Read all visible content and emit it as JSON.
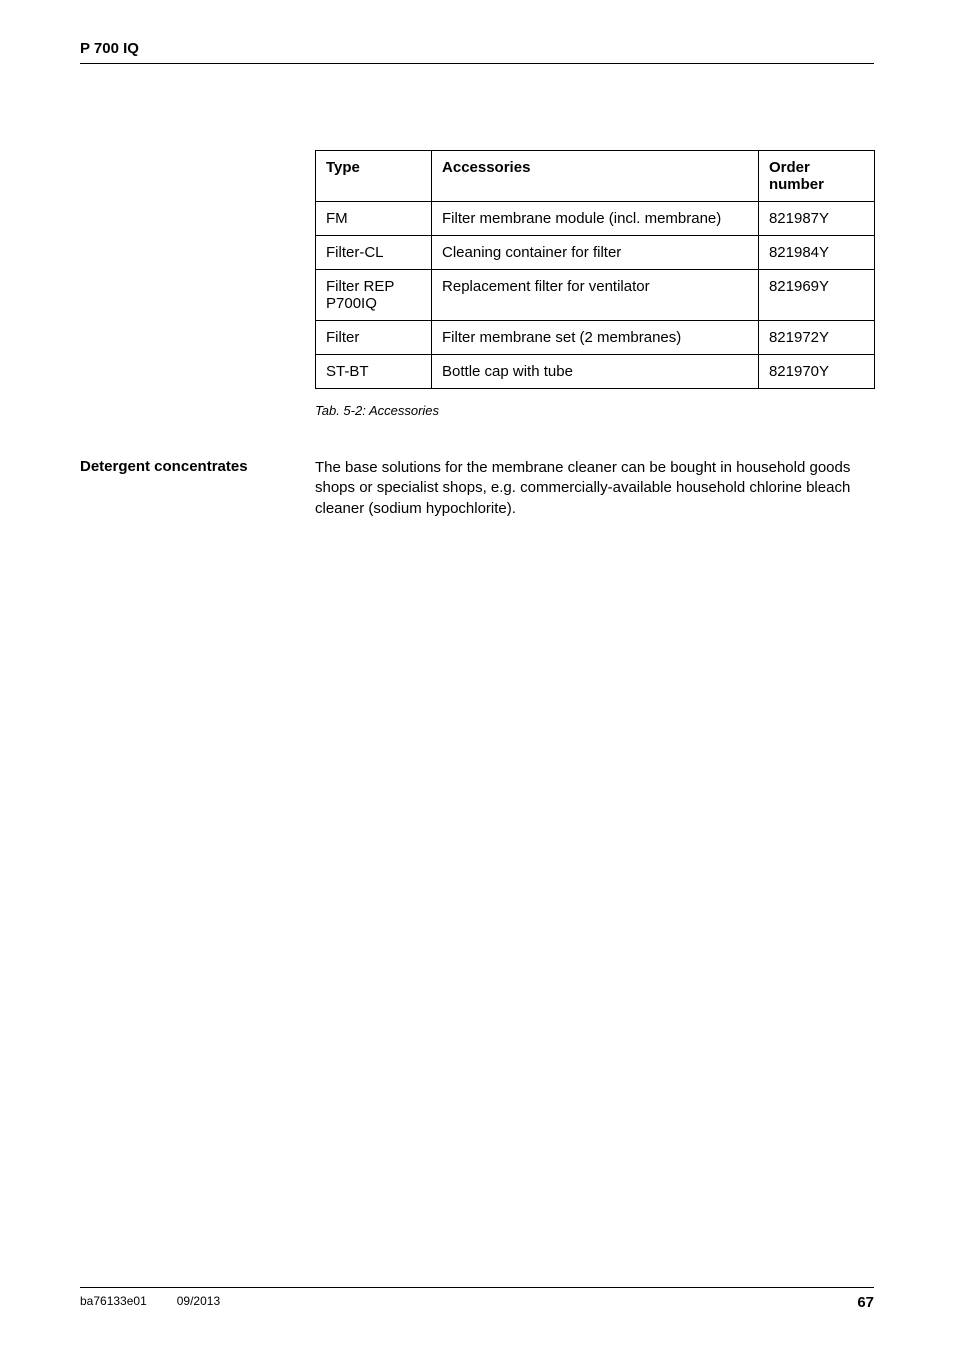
{
  "header": {
    "title": "P 700 IQ"
  },
  "table": {
    "columns": [
      "Type",
      "Accessories",
      "Order number"
    ],
    "rows": [
      {
        "type": "FM",
        "accessories": "Filter membrane module (incl. membrane)",
        "order": "821987Y"
      },
      {
        "type": "Filter-CL",
        "accessories": "Cleaning container for filter",
        "order": "821984Y"
      },
      {
        "type": "Filter REP P700IQ",
        "accessories": "Replacement filter for ventilator",
        "order": "821969Y"
      },
      {
        "type": "Filter",
        "accessories": "Filter membrane set (2 membranes)",
        "order": "821972Y"
      },
      {
        "type": "ST-BT",
        "accessories": "Bottle cap with tube",
        "order": "821970Y"
      }
    ],
    "caption": "Tab. 5-2: Accessories"
  },
  "detergent": {
    "label": "Detergent concentrates",
    "body": "The base solutions for the membrane cleaner can be bought in household goods shops or specialist shops, e.g. commercially-available household chlorine bleach cleaner (sodium hypochlorite)."
  },
  "footer": {
    "doc_id": "ba76133e01",
    "date": "09/2013",
    "page": "67"
  }
}
